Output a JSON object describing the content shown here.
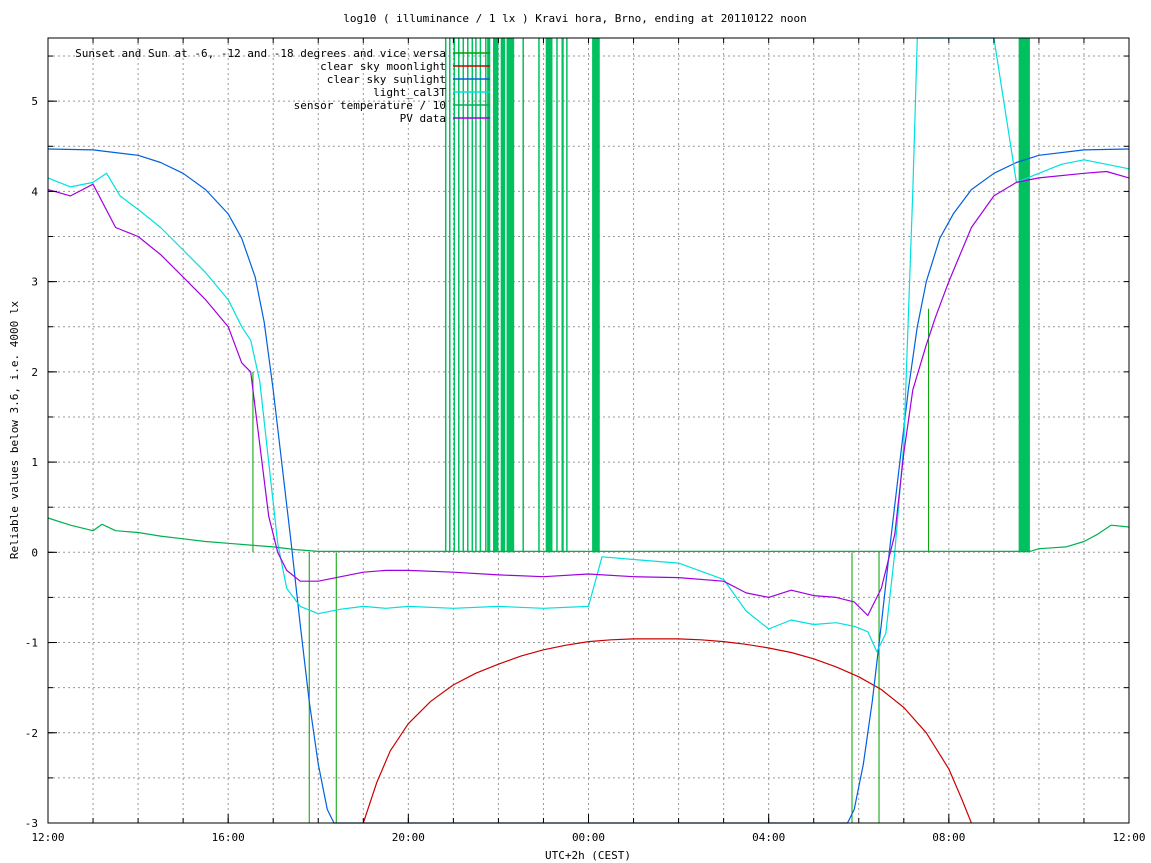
{
  "chart_data": {
    "type": "line",
    "title": "log10 ( illuminance / 1 lx ) Kravi hora, Brno, ending at 20110122 noon",
    "xlabel": "UTC+2h (CEST)",
    "ylabel": "Reliable values below 3.6, i.e. 4000 lx",
    "xlim": [
      12,
      36
    ],
    "ylim": [
      -3,
      5.7
    ],
    "grid": true,
    "legend_position": "top-left",
    "x_ticks": [
      {
        "value": 12,
        "label": "12:00"
      },
      {
        "value": 16,
        "label": "16:00"
      },
      {
        "value": 20,
        "label": "20:00"
      },
      {
        "value": 24,
        "label": "00:00"
      },
      {
        "value": 28,
        "label": "04:00"
      },
      {
        "value": 32,
        "label": "08:00"
      },
      {
        "value": 36,
        "label": "12:00"
      }
    ],
    "x_minor_step": 1,
    "y_ticks": [
      {
        "value": -3,
        "label": "-3"
      },
      {
        "value": -2,
        "label": "-2"
      },
      {
        "value": -1,
        "label": "-1"
      },
      {
        "value": 0,
        "label": "0"
      },
      {
        "value": 1,
        "label": "1"
      },
      {
        "value": 2,
        "label": "2"
      },
      {
        "value": 3,
        "label": "3"
      },
      {
        "value": 4,
        "label": "4"
      },
      {
        "value": 5,
        "label": "5"
      }
    ],
    "y_minor_step": 0.5,
    "series": [
      {
        "name": "Sunset and Sun at -6, -12 and -18 degrees and vice versa",
        "color": "#00a000",
        "style": "vertical-markers",
        "x": [
          16.55,
          17.8,
          18.4,
          29.85,
          30.45,
          31.55
        ],
        "y_bottom": [
          0,
          -3,
          -3,
          -3,
          -3,
          0
        ],
        "y_top": [
          2.0,
          0,
          0,
          0,
          0,
          2.7
        ]
      },
      {
        "name": "clear sky moonlight",
        "color": "#cc0000",
        "style": "line",
        "x": [
          19.0,
          19.3,
          19.6,
          20.0,
          20.5,
          21.0,
          21.5,
          22.0,
          22.5,
          23.0,
          23.5,
          24.0,
          24.5,
          25.0,
          25.5,
          26.0,
          26.5,
          27.0,
          27.5,
          28.0,
          28.5,
          29.0,
          29.5,
          30.0,
          30.5,
          31.0,
          31.5,
          32.0,
          32.3,
          32.5
        ],
        "y": [
          -3.0,
          -2.55,
          -2.2,
          -1.9,
          -1.65,
          -1.47,
          -1.34,
          -1.24,
          -1.15,
          -1.08,
          -1.03,
          -0.99,
          -0.97,
          -0.96,
          -0.96,
          -0.96,
          -0.97,
          -0.99,
          -1.02,
          -1.06,
          -1.11,
          -1.18,
          -1.27,
          -1.38,
          -1.52,
          -1.72,
          -2.0,
          -2.4,
          -2.75,
          -3.0
        ]
      },
      {
        "name": "clear sky sunlight",
        "color": "#0060e0",
        "style": "line",
        "x": [
          12.0,
          13.0,
          14.0,
          14.5,
          15.0,
          15.5,
          16.0,
          16.3,
          16.6,
          16.8,
          17.0,
          17.2,
          17.4,
          17.6,
          17.8,
          18.0,
          18.2,
          18.35,
          29.75,
          29.9,
          30.1,
          30.3,
          30.5,
          30.7,
          30.9,
          31.1,
          31.3,
          31.5,
          31.8,
          32.1,
          32.5,
          33.0,
          33.5,
          34.0,
          35.0,
          36.0
        ],
        "y": [
          4.47,
          4.46,
          4.4,
          4.32,
          4.2,
          4.02,
          3.75,
          3.48,
          3.05,
          2.55,
          1.8,
          0.95,
          0.1,
          -0.8,
          -1.65,
          -2.35,
          -2.85,
          -3.0,
          -3.0,
          -2.85,
          -2.35,
          -1.65,
          -0.8,
          0.1,
          0.95,
          1.8,
          2.5,
          3.0,
          3.48,
          3.75,
          4.02,
          4.2,
          4.32,
          4.4,
          4.46,
          4.47
        ]
      },
      {
        "name": "light_cal3T",
        "color": "#00e0e0",
        "style": "line",
        "x": [
          12.0,
          12.5,
          13.0,
          13.3,
          13.6,
          14.0,
          14.5,
          15.0,
          15.5,
          16.0,
          16.3,
          16.5,
          16.7,
          16.9,
          17.1,
          17.3,
          17.6,
          18.0,
          18.5,
          19.0,
          19.5,
          20.0,
          21.0,
          22.0,
          23.0,
          24.0,
          24.3,
          25.0,
          26.0,
          27.0,
          27.5,
          28.0,
          28.5,
          29.0,
          29.5,
          29.9,
          30.2,
          30.4,
          30.6,
          30.8,
          31.0,
          31.1,
          31.2,
          31.3,
          31.4,
          31.5,
          31.7,
          32.0,
          32.5,
          33.0,
          33.5,
          34.0,
          34.5,
          35.0,
          35.5,
          36.0
        ],
        "y": [
          4.15,
          4.05,
          4.1,
          4.2,
          3.95,
          3.8,
          3.6,
          3.35,
          3.1,
          2.8,
          2.5,
          2.35,
          1.9,
          1.0,
          0.1,
          -0.4,
          -0.6,
          -0.68,
          -0.63,
          -0.6,
          -0.62,
          -0.6,
          -0.62,
          -0.6,
          -0.62,
          -0.6,
          -0.05,
          -0.08,
          -0.12,
          -0.3,
          -0.65,
          -0.85,
          -0.75,
          -0.8,
          -0.78,
          -0.82,
          -0.88,
          -1.1,
          -0.9,
          0.0,
          1.2,
          2.6,
          4.0,
          5.7,
          5.7,
          5.7,
          5.7,
          5.7,
          5.7,
          5.7,
          4.1,
          4.2,
          4.3,
          4.35,
          4.3,
          4.25
        ]
      },
      {
        "name": "sensor temperature / 10",
        "color": "#00b050",
        "style": "line",
        "x": [
          12.0,
          12.5,
          13.0,
          13.2,
          13.5,
          14.0,
          14.5,
          15.0,
          15.5,
          16.0,
          16.5,
          17.0,
          17.5,
          18.0,
          21.0,
          24.0,
          27.0,
          30.0,
          31.0,
          32.0,
          33.0,
          33.8,
          34.0,
          34.3,
          34.6,
          35.0,
          35.3,
          35.6,
          36.0
        ],
        "y": [
          0.38,
          0.3,
          0.24,
          0.31,
          0.24,
          0.22,
          0.18,
          0.15,
          0.12,
          0.1,
          0.08,
          0.06,
          0.03,
          0.01,
          0.01,
          0.01,
          0.01,
          0.01,
          0.01,
          0.01,
          0.01,
          0.01,
          0.04,
          0.05,
          0.06,
          0.12,
          0.2,
          0.3,
          0.28
        ]
      },
      {
        "name": "PV data",
        "color": "#a000e0",
        "style": "line",
        "x": [
          12.0,
          12.5,
          13.0,
          13.5,
          14.0,
          14.5,
          15.0,
          15.5,
          16.0,
          16.3,
          16.5,
          16.7,
          16.9,
          17.1,
          17.3,
          17.6,
          18.0,
          18.5,
          19.0,
          19.5,
          20.0,
          21.0,
          22.0,
          23.0,
          24.0,
          25.0,
          26.0,
          27.0,
          27.5,
          28.0,
          28.5,
          29.0,
          29.5,
          29.9,
          30.2,
          30.5,
          30.8,
          31.0,
          31.2,
          31.5,
          31.7,
          32.0,
          32.5,
          33.0,
          33.5,
          34.0,
          35.0,
          35.5,
          36.0
        ],
        "y": [
          4.02,
          3.95,
          4.08,
          3.6,
          3.5,
          3.3,
          3.05,
          2.8,
          2.5,
          2.1,
          2.0,
          1.2,
          0.4,
          0.0,
          -0.2,
          -0.32,
          -0.32,
          -0.27,
          -0.22,
          -0.2,
          -0.2,
          -0.22,
          -0.25,
          -0.27,
          -0.24,
          -0.27,
          -0.28,
          -0.32,
          -0.45,
          -0.5,
          -0.42,
          -0.48,
          -0.5,
          -0.55,
          -0.7,
          -0.4,
          0.2,
          1.1,
          1.8,
          2.3,
          2.6,
          3.0,
          3.6,
          3.95,
          4.1,
          4.15,
          4.2,
          4.22,
          4.15
        ]
      }
    ],
    "marker_bands": {
      "color": "#00c060",
      "y_bottom": 0.0,
      "y_top": 5.7,
      "x": [
        20.83,
        20.92,
        21.02,
        21.12,
        21.22,
        21.32,
        21.42,
        21.5,
        21.6,
        21.72,
        22.55,
        22.9,
        23.3,
        23.52
      ],
      "x_ranges": [
        [
          21.75,
          21.82
        ],
        [
          21.88,
          22.0
        ],
        [
          22.05,
          22.15
        ],
        [
          22.18,
          22.35
        ],
        [
          23.05,
          23.2
        ],
        [
          23.4,
          23.45
        ],
        [
          24.08,
          24.25
        ],
        [
          33.55,
          33.8
        ]
      ]
    }
  }
}
